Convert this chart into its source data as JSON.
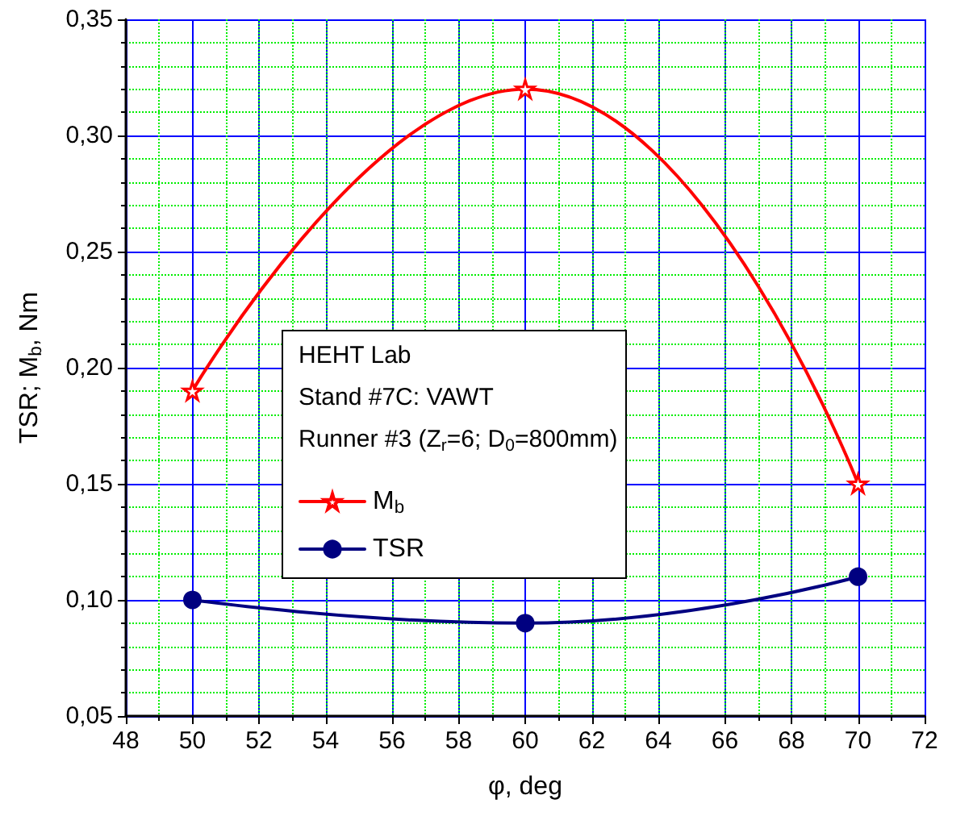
{
  "chart_data": {
    "type": "line",
    "xlabel": "φ, deg",
    "ylabel": "TSR; M$_{b}$, Nm",
    "legend_title": "HEHT Lab",
    "annotations": [
      "Stand #7C: VAWT",
      "Runner #3 (Z$_{r}$=6; D$_{0}$=800mm)"
    ],
    "x": [
      50,
      60,
      70
    ],
    "series": [
      {
        "name": "M$_{b}$",
        "color": "#ff0000",
        "marker": "star",
        "values": [
          0.19,
          0.32,
          0.15
        ]
      },
      {
        "name": "TSR",
        "color": "#000080",
        "marker": "circle",
        "values": [
          0.1,
          0.09,
          0.11
        ]
      }
    ],
    "xlim": [
      48,
      72
    ],
    "xticks": [
      48,
      50,
      52,
      54,
      56,
      58,
      60,
      62,
      64,
      66,
      68,
      70,
      72
    ],
    "ylim": [
      0.05,
      0.35
    ],
    "yticks": [
      {
        "value": 0.05,
        "label": "0,05"
      },
      {
        "value": 0.1,
        "label": "0,10"
      },
      {
        "value": 0.15,
        "label": "0,15"
      },
      {
        "value": 0.2,
        "label": "0,20"
      },
      {
        "value": 0.25,
        "label": "0,25"
      },
      {
        "value": 0.3,
        "label": "0,30"
      },
      {
        "value": 0.35,
        "label": "0,35"
      }
    ],
    "grid": true,
    "legend": "left",
    "line_style": "solid"
  }
}
